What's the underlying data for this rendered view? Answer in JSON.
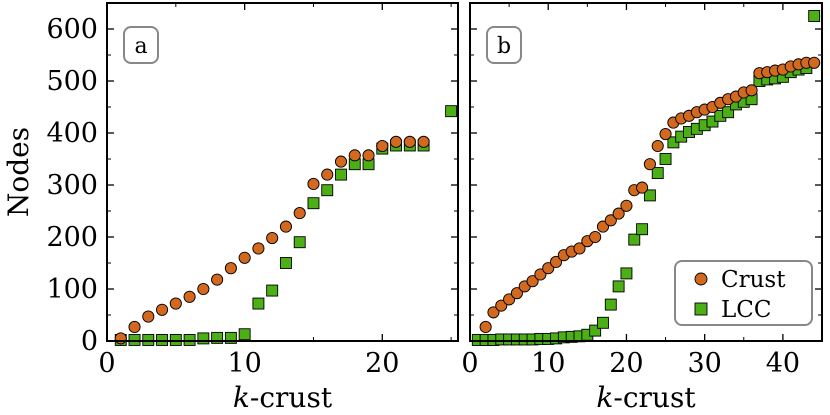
{
  "chart_data": [
    {
      "type": "scatter",
      "panel_label": "a",
      "xlabel_italic": "k",
      "xlabel_rest": "-crust",
      "ylabel": "Nodes",
      "xlim": [
        0,
        25.5
      ],
      "ylim": [
        0,
        650
      ],
      "xticks": [
        0,
        10,
        20
      ],
      "yticks": [
        0,
        100,
        200,
        300,
        400,
        500,
        600
      ],
      "series": [
        {
          "name": "Crust",
          "marker": "circle",
          "color": "#d2691e",
          "x": [
            1,
            2,
            3,
            4,
            5,
            6,
            7,
            8,
            9,
            10,
            11,
            12,
            13,
            14,
            15,
            16,
            17,
            18,
            19,
            20,
            21,
            22,
            23
          ],
          "y": [
            5,
            27,
            47,
            60,
            72,
            85,
            100,
            118,
            140,
            160,
            178,
            198,
            220,
            246,
            302,
            320,
            345,
            357,
            357,
            375,
            383,
            383,
            383
          ]
        },
        {
          "name": "LCC",
          "marker": "square",
          "color": "#4caf16",
          "x": [
            1,
            2,
            3,
            4,
            5,
            6,
            7,
            8,
            9,
            10,
            11,
            12,
            13,
            14,
            15,
            16,
            17,
            18,
            19,
            20,
            21,
            22,
            23,
            25
          ],
          "y": [
            2,
            2,
            2,
            2,
            2,
            2,
            5,
            6,
            6,
            13,
            72,
            97,
            150,
            190,
            265,
            290,
            320,
            340,
            340,
            370,
            376,
            376,
            376,
            442
          ]
        }
      ]
    },
    {
      "type": "scatter",
      "panel_label": "b",
      "xlabel_italic": "k",
      "xlabel_rest": "-crust",
      "ylabel": "",
      "xlim": [
        0,
        45
      ],
      "ylim": [
        0,
        650
      ],
      "xticks": [
        0,
        10,
        20,
        30,
        40
      ],
      "yticks": [
        0,
        100,
        200,
        300,
        400,
        500,
        600
      ],
      "legend": {
        "placement": "lower-right",
        "entries": [
          "Crust",
          "LCC"
        ]
      },
      "series": [
        {
          "name": "Crust",
          "marker": "circle",
          "color": "#d2691e",
          "x": [
            2,
            3,
            4,
            5,
            6,
            7,
            8,
            9,
            10,
            11,
            12,
            13,
            14,
            15,
            16,
            17,
            18,
            19,
            20,
            21,
            22,
            23,
            24,
            25,
            26,
            27,
            28,
            29,
            30,
            31,
            32,
            33,
            34,
            35,
            36,
            37,
            38,
            39,
            40,
            41,
            42,
            43,
            44
          ],
          "y": [
            27,
            55,
            68,
            80,
            92,
            105,
            115,
            128,
            140,
            152,
            165,
            172,
            178,
            192,
            200,
            220,
            232,
            245,
            260,
            290,
            295,
            340,
            375,
            398,
            420,
            428,
            433,
            440,
            445,
            450,
            458,
            465,
            470,
            478,
            482,
            515,
            517,
            520,
            522,
            528,
            532,
            535,
            535
          ]
        },
        {
          "name": "LCC",
          "marker": "square",
          "color": "#4caf16",
          "x": [
            1,
            2,
            3,
            4,
            5,
            6,
            7,
            8,
            9,
            10,
            11,
            12,
            13,
            14,
            15,
            16,
            17,
            18,
            19,
            20,
            21,
            22,
            23,
            24,
            25,
            26,
            27,
            28,
            29,
            30,
            31,
            32,
            33,
            34,
            35,
            36,
            37,
            38,
            39,
            40,
            41,
            42,
            43,
            44
          ],
          "y": [
            2,
            2,
            2,
            3,
            3,
            3,
            3,
            3,
            4,
            4,
            5,
            7,
            8,
            9,
            12,
            20,
            35,
            70,
            105,
            130,
            195,
            215,
            280,
            323,
            350,
            382,
            393,
            402,
            408,
            415,
            422,
            433,
            440,
            455,
            460,
            465,
            500,
            503,
            505,
            508,
            517,
            522,
            525,
            625
          ]
        }
      ]
    }
  ]
}
